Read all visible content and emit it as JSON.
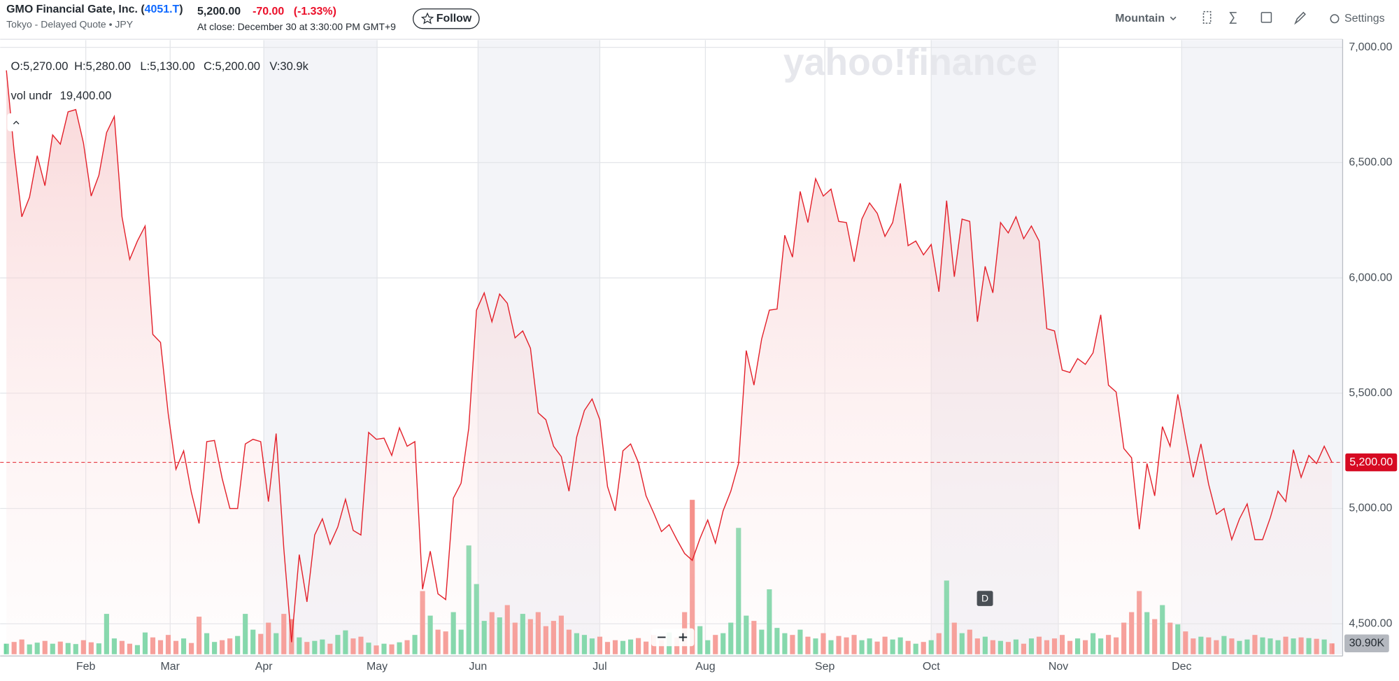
{
  "header": {
    "name": "GMO Financial Gate, Inc. (",
    "ticker": "4051.T",
    "name_end": ")",
    "subtitle": "Tokyo - Delayed Quote • JPY",
    "price": "5,200.00",
    "change": "-70.00",
    "change_pct": "(-1.33%)",
    "close_note": "At close: December 30 at 3:30:00 PM GMT+9",
    "follow": "Follow",
    "chart_style": "Mountain",
    "settings": "Settings"
  },
  "chart_data": {
    "type": "line",
    "watermark": "yahoo!finance",
    "ohlc": [
      "O:5,270.00",
      "H:5,280.00",
      "L:5,130.00",
      "C:5,200.00",
      "V:30.9k"
    ],
    "indicator": {
      "label": "vol undr",
      "value": "19,400.00"
    },
    "event_marker": "D",
    "ylim": [
      4368,
      7031
    ],
    "yticks": [
      {
        "value": 4500,
        "label": "4,500.00"
      },
      {
        "value": 5000,
        "label": "5,000.00"
      },
      {
        "value": 5500,
        "label": "5,500.00"
      },
      {
        "value": 6000,
        "label": "6,000.00"
      },
      {
        "value": 6500,
        "label": "6,500.00"
      },
      {
        "value": 7000,
        "label": "7,000.00"
      }
    ],
    "y2lim": [
      0,
      1750000
    ],
    "xlim": [
      0,
      172
    ],
    "xticks": [
      {
        "value": 10.3,
        "label": "Feb"
      },
      {
        "value": 21.25,
        "label": "Mar"
      },
      {
        "value": 33.4,
        "label": "Apr"
      },
      {
        "value": 48.1,
        "label": "May"
      },
      {
        "value": 61.2,
        "label": "Jun"
      },
      {
        "value": 77,
        "label": "Jul"
      },
      {
        "value": 90.7,
        "label": "Aug"
      },
      {
        "value": 106.2,
        "label": "Sep"
      },
      {
        "value": 120,
        "label": "Oct"
      },
      {
        "value": 136.5,
        "label": "Nov"
      },
      {
        "value": 152.5,
        "label": "Dec"
      }
    ],
    "shaded_months": [
      2,
      4,
      8,
      10
    ],
    "grid": true,
    "last_price": {
      "value": 5200,
      "label": "5,200.00"
    },
    "last_volume": {
      "value": 30900,
      "label": "30.90K"
    },
    "series": [
      {
        "color": "#e3202a",
        "values": [
          6900,
          6550,
          6265,
          6350,
          6530,
          6400,
          6620,
          6580,
          6720,
          6730,
          6585,
          6355,
          6445,
          6630,
          6700,
          6265,
          6080,
          6160,
          6225,
          5755,
          5720,
          5410,
          5170,
          5250,
          5070,
          4935,
          5290,
          5295,
          5130,
          5000,
          5000,
          5280,
          5300,
          5290,
          5030,
          5325,
          4825,
          4420,
          4800,
          4595,
          4885,
          4955,
          4845,
          4920,
          5040,
          4905,
          4885,
          5330,
          5300,
          5305,
          5230,
          5350,
          5270,
          5290,
          4650,
          4815,
          4630,
          4605,
          5045,
          5110,
          5350,
          5860,
          5935,
          5810,
          5930,
          5890,
          5740,
          5770,
          5695,
          5415,
          5385,
          5270,
          5225,
          5075,
          5310,
          5425,
          5475,
          5385,
          5095,
          4990,
          5250,
          5280,
          5200,
          5055,
          4980,
          4900,
          4930,
          4865,
          4805,
          4775,
          4870,
          4950,
          4850,
          4990,
          5075,
          5195,
          5685,
          5535,
          5735,
          5860,
          5865,
          6185,
          6090,
          6375,
          6240,
          6430,
          6355,
          6385,
          6245,
          6240,
          6070,
          6255,
          6325,
          6280,
          6180,
          6240,
          6410,
          6140,
          6160,
          6100,
          6145,
          5940,
          6335,
          6005,
          6255,
          6245,
          5810,
          6050,
          5935,
          6240,
          6195,
          6265,
          6170,
          6225,
          6160,
          5780,
          5770,
          5600,
          5590,
          5650,
          5625,
          5675,
          5840,
          5535,
          5505,
          5260,
          5220,
          4910,
          5195,
          5055,
          5355,
          5270,
          5495,
          5310,
          5135,
          5280,
          5105,
          4975,
          5000,
          4865,
          4955,
          5020,
          4865,
          4865,
          4960,
          5075,
          5030,
          5255,
          5135,
          5230,
          5195,
          5270,
          5200
        ]
      },
      {
        "axis": "y2",
        "up_color": "#6fd4a0",
        "down_color": "#f5918b",
        "values": [
          30000,
          35000,
          42000,
          28000,
          33000,
          38000,
          30000,
          36000,
          32000,
          29000,
          40000,
          34000,
          31000,
          115000,
          45000,
          38000,
          30000,
          26000,
          62000,
          48000,
          40000,
          55000,
          38000,
          45000,
          32000,
          107000,
          60000,
          35000,
          40000,
          45000,
          52000,
          115000,
          70000,
          58000,
          90000,
          60000,
          115000,
          100000,
          48000,
          35000,
          38000,
          42000,
          30000,
          55000,
          68000,
          45000,
          50000,
          33000,
          25000,
          30000,
          28000,
          34000,
          40000,
          55000,
          180000,
          110000,
          70000,
          65000,
          120000,
          70000,
          310000,
          200000,
          95000,
          120000,
          105000,
          140000,
          90000,
          115000,
          100000,
          120000,
          80000,
          95000,
          110000,
          70000,
          60000,
          55000,
          45000,
          50000,
          35000,
          40000,
          38000,
          42000,
          46000,
          36000,
          55000,
          40000,
          62000,
          48000,
          120000,
          440000,
          80000,
          40000,
          55000,
          60000,
          90000,
          360000,
          110000,
          95000,
          70000,
          185000,
          75000,
          60000,
          55000,
          70000,
          50000,
          45000,
          60000,
          40000,
          52000,
          48000,
          55000,
          40000,
          45000,
          36000,
          50000,
          42000,
          48000,
          38000,
          30000,
          35000,
          40000,
          60000,
          210000,
          90000,
          60000,
          70000,
          45000,
          50000,
          40000,
          38000,
          35000,
          42000,
          30000,
          45000,
          50000,
          40000,
          45000,
          55000,
          38000,
          45000,
          40000,
          60000,
          45000,
          55000,
          48000,
          90000,
          120000,
          180000,
          120000,
          100000,
          140000,
          90000,
          85000,
          65000,
          45000,
          50000,
          48000,
          40000,
          52000,
          45000,
          38000,
          42000,
          55000,
          48000,
          45000,
          40000,
          50000,
          45000,
          48000,
          46000,
          44000,
          42000,
          30900
        ]
      }
    ]
  }
}
